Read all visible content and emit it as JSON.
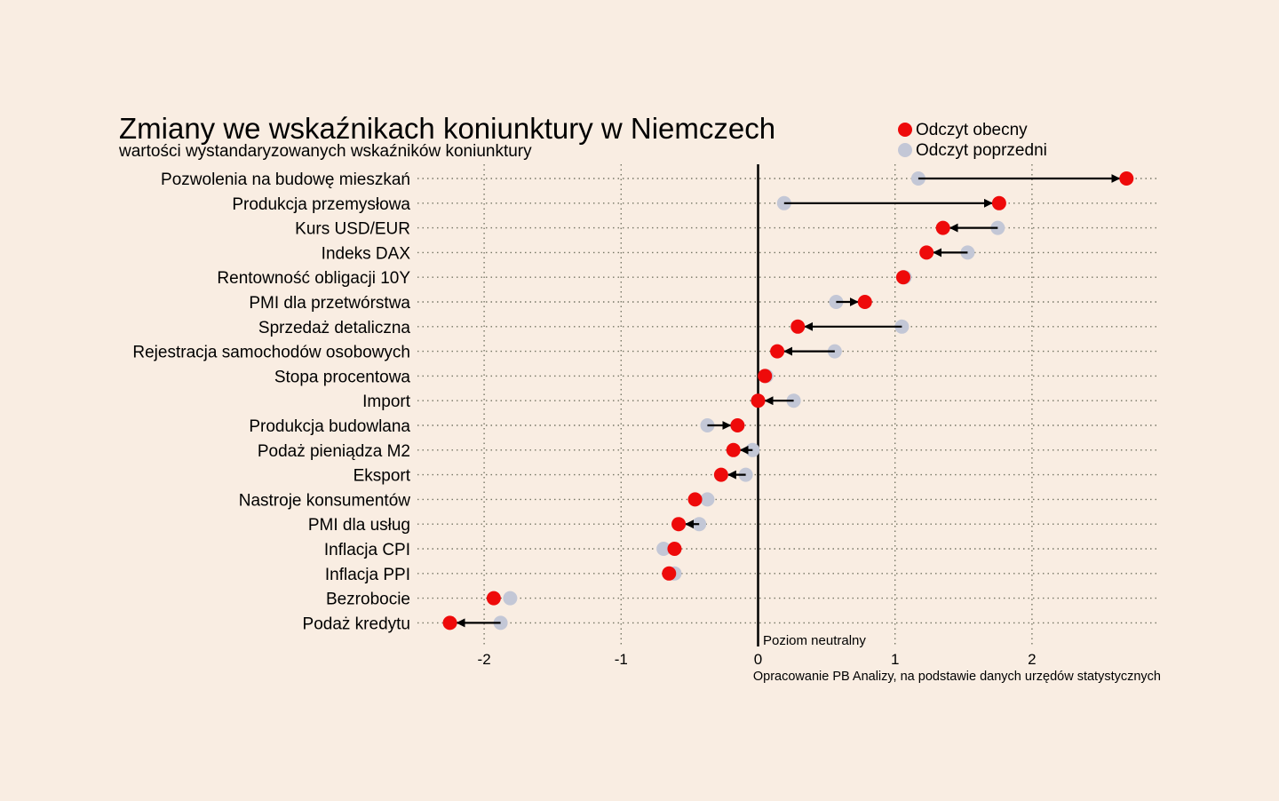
{
  "chart_data": {
    "type": "dumbbell",
    "title": "Zmiany we wskaźnikach koniunktury w Niemczech",
    "subtitle": "wartości wystandaryzowanych wskaźników koniunktury",
    "legend": {
      "placement": "top-right",
      "current_label": "Odczyt obecny",
      "previous_label": "Odczyt poprzedni"
    },
    "colors": {
      "background": "#f9ede2",
      "current": "#ee0a0a",
      "previous": "#c3c7d6",
      "arrow": "#000000",
      "grid": "#777766"
    },
    "xlim": [
      -2.4,
      2.95
    ],
    "xticks": [
      -2,
      -1,
      0,
      1,
      2
    ],
    "grid": true,
    "neutral_label": "Poziom neutralny",
    "source": "Opracowanie PB Analizy, na podstawie danych urzędów statystycznych",
    "categories": [
      "Pozwolenia na budowę mieszkań",
      "Produkcja przemysłowa",
      "Kurs USD/EUR",
      "Indeks DAX",
      "Rentowność obligacji 10Y",
      "PMI dla przetwórstwa",
      "Sprzedaż detaliczna",
      "Rejestracja samochodów osobowych",
      "Stopa procentowa",
      "Import",
      "Produkcja budowlana",
      "Podaż pieniądza M2",
      "Eksport",
      "Nastroje konsumentów",
      "PMI dla usług",
      "Inflacja CPI",
      "Inflacja PPI",
      "Bezrobocie",
      "Podaż kredytu"
    ],
    "series": [
      {
        "name": "Odczyt poprzedni",
        "values": [
          1.17,
          0.19,
          1.75,
          1.53,
          1.07,
          0.57,
          1.05,
          0.56,
          0.06,
          0.26,
          -0.37,
          -0.04,
          -0.09,
          -0.37,
          -0.43,
          -0.69,
          -0.61,
          -1.81,
          -1.88
        ]
      },
      {
        "name": "Odczyt obecny",
        "values": [
          2.69,
          1.76,
          1.35,
          1.23,
          1.06,
          0.78,
          0.29,
          0.14,
          0.05,
          0.0,
          -0.15,
          -0.18,
          -0.27,
          -0.46,
          -0.58,
          -0.61,
          -0.65,
          -1.93,
          -2.25
        ]
      }
    ]
  }
}
